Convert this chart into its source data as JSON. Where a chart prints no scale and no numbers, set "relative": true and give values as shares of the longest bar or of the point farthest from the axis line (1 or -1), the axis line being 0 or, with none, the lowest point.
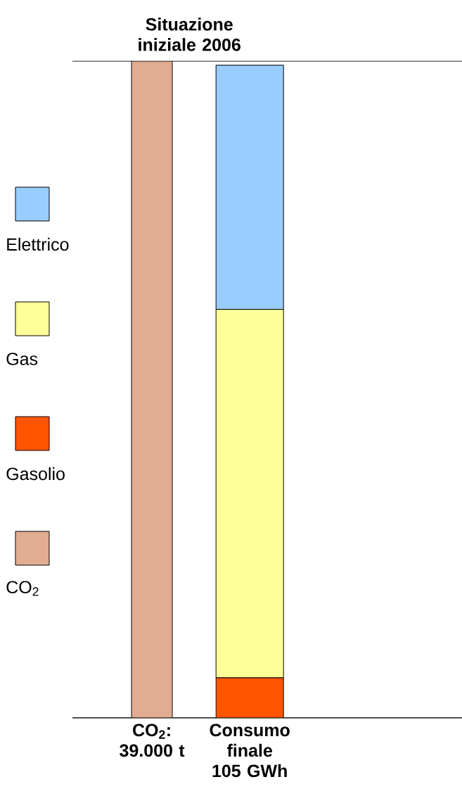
{
  "chart_data": {
    "type": "bar",
    "title": "Situazione iniziale 2006",
    "relative": true,
    "stacked": true,
    "legend": "left",
    "categories": [
      "CO$_{2}$: 39.000 t",
      "Consumo finale 105 GWh"
    ],
    "series": [
      {
        "name": "CO$_{2}$",
        "color": "#e2ac90",
        "values": [
          1,
          null
        ]
      },
      {
        "name": "Gasolio",
        "color": "#ff5500",
        "values": [
          null,
          0.061
        ]
      },
      {
        "name": "Gas",
        "color": "#ffff99",
        "values": [
          null,
          0.561
        ]
      },
      {
        "name": "Elettrico",
        "color": "#99ccff",
        "values": [
          null,
          0.372
        ]
      }
    ]
  }
}
